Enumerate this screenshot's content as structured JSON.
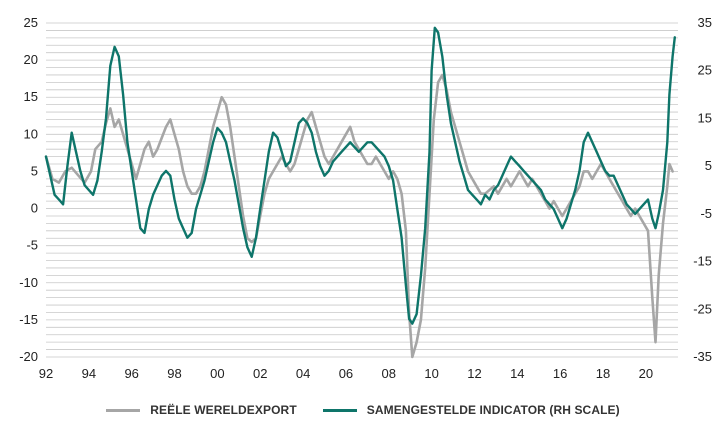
{
  "chart_data": {
    "type": "line",
    "title": "",
    "xlabel": "",
    "ylabel_left": "",
    "ylabel_right": "",
    "x_ticks": [
      "92",
      "94",
      "96",
      "98",
      "00",
      "02",
      "04",
      "06",
      "08",
      "10",
      "12",
      "14",
      "16",
      "18",
      "20"
    ],
    "x_range": [
      1992,
      2021.5
    ],
    "y_left_range": [
      -20,
      25
    ],
    "y_left_ticks": [
      "25",
      "20",
      "15",
      "10",
      "5",
      "0",
      "-5",
      "-10",
      "-15",
      "-20"
    ],
    "y_right_range": [
      -35,
      35
    ],
    "y_right_ticks": [
      "35",
      "25",
      "15",
      "5",
      "-5",
      "-15",
      "-25",
      "-35"
    ],
    "grid": true,
    "legend_position": "bottom",
    "series": [
      {
        "name": "REËLE WERELDEXPORT",
        "axis": "left",
        "color": "#a6a6a6",
        "points": [
          [
            1992.0,
            7
          ],
          [
            1992.3,
            4
          ],
          [
            1992.6,
            3.5
          ],
          [
            1992.9,
            5
          ],
          [
            1993.2,
            5.5
          ],
          [
            1993.5,
            4.5
          ],
          [
            1993.8,
            3.5
          ],
          [
            1994.1,
            5
          ],
          [
            1994.3,
            8
          ],
          [
            1994.6,
            9
          ],
          [
            1994.8,
            11.5
          ],
          [
            1995.0,
            13.5
          ],
          [
            1995.2,
            11
          ],
          [
            1995.4,
            12
          ],
          [
            1995.6,
            10
          ],
          [
            1995.8,
            8
          ],
          [
            1996.0,
            6
          ],
          [
            1996.2,
            4
          ],
          [
            1996.4,
            6
          ],
          [
            1996.6,
            8
          ],
          [
            1996.8,
            9
          ],
          [
            1997.0,
            7
          ],
          [
            1997.2,
            8
          ],
          [
            1997.4,
            9.5
          ],
          [
            1997.6,
            11
          ],
          [
            1997.8,
            12
          ],
          [
            1998.0,
            10
          ],
          [
            1998.2,
            8
          ],
          [
            1998.4,
            5
          ],
          [
            1998.6,
            3
          ],
          [
            1998.8,
            2
          ],
          [
            1999.0,
            2
          ],
          [
            1999.2,
            3
          ],
          [
            1999.4,
            5
          ],
          [
            1999.6,
            8
          ],
          [
            1999.8,
            11
          ],
          [
            2000.0,
            13
          ],
          [
            2000.2,
            15
          ],
          [
            2000.4,
            14
          ],
          [
            2000.6,
            11
          ],
          [
            2000.8,
            7
          ],
          [
            2001.0,
            3
          ],
          [
            2001.2,
            -1
          ],
          [
            2001.4,
            -4
          ],
          [
            2001.6,
            -4.5
          ],
          [
            2001.8,
            -4
          ],
          [
            2002.0,
            -1
          ],
          [
            2002.2,
            2
          ],
          [
            2002.4,
            4
          ],
          [
            2002.6,
            5
          ],
          [
            2002.8,
            6
          ],
          [
            2003.0,
            7
          ],
          [
            2003.2,
            6
          ],
          [
            2003.4,
            5
          ],
          [
            2003.6,
            6
          ],
          [
            2003.8,
            8
          ],
          [
            2004.0,
            10
          ],
          [
            2004.2,
            12
          ],
          [
            2004.4,
            13
          ],
          [
            2004.6,
            11
          ],
          [
            2004.8,
            9
          ],
          [
            2005.0,
            7
          ],
          [
            2005.2,
            6
          ],
          [
            2005.4,
            7
          ],
          [
            2005.6,
            8
          ],
          [
            2005.8,
            9
          ],
          [
            2006.0,
            10
          ],
          [
            2006.2,
            11
          ],
          [
            2006.4,
            9
          ],
          [
            2006.6,
            8
          ],
          [
            2006.8,
            7
          ],
          [
            2007.0,
            6
          ],
          [
            2007.2,
            6
          ],
          [
            2007.4,
            7
          ],
          [
            2007.6,
            6
          ],
          [
            2007.8,
            5
          ],
          [
            2008.0,
            4
          ],
          [
            2008.2,
            5
          ],
          [
            2008.4,
            4
          ],
          [
            2008.6,
            2
          ],
          [
            2008.8,
            -3
          ],
          [
            2008.95,
            -14
          ],
          [
            2009.1,
            -20
          ],
          [
            2009.3,
            -18
          ],
          [
            2009.5,
            -15
          ],
          [
            2009.7,
            -8
          ],
          [
            2009.9,
            2
          ],
          [
            2010.1,
            12
          ],
          [
            2010.3,
            17
          ],
          [
            2010.5,
            18
          ],
          [
            2010.7,
            16
          ],
          [
            2010.9,
            13
          ],
          [
            2011.1,
            11
          ],
          [
            2011.3,
            9
          ],
          [
            2011.5,
            7
          ],
          [
            2011.7,
            5
          ],
          [
            2011.9,
            4
          ],
          [
            2012.1,
            3
          ],
          [
            2012.3,
            2
          ],
          [
            2012.5,
            2
          ],
          [
            2012.7,
            2.5
          ],
          [
            2012.9,
            3
          ],
          [
            2013.1,
            2
          ],
          [
            2013.3,
            3
          ],
          [
            2013.5,
            4
          ],
          [
            2013.7,
            3
          ],
          [
            2013.9,
            4
          ],
          [
            2014.1,
            5
          ],
          [
            2014.3,
            4
          ],
          [
            2014.5,
            3
          ],
          [
            2014.7,
            4
          ],
          [
            2014.9,
            3
          ],
          [
            2015.1,
            2
          ],
          [
            2015.3,
            1
          ],
          [
            2015.5,
            0
          ],
          [
            2015.7,
            1
          ],
          [
            2015.9,
            0
          ],
          [
            2016.1,
            -1
          ],
          [
            2016.3,
            0
          ],
          [
            2016.5,
            1
          ],
          [
            2016.7,
            2
          ],
          [
            2016.9,
            3
          ],
          [
            2017.1,
            5
          ],
          [
            2017.3,
            5
          ],
          [
            2017.5,
            4
          ],
          [
            2017.7,
            5
          ],
          [
            2017.9,
            6
          ],
          [
            2018.1,
            5
          ],
          [
            2018.3,
            4
          ],
          [
            2018.5,
            3
          ],
          [
            2018.7,
            2
          ],
          [
            2018.9,
            1
          ],
          [
            2019.1,
            0
          ],
          [
            2019.3,
            -1
          ],
          [
            2019.5,
            0
          ],
          [
            2019.7,
            -1
          ],
          [
            2019.9,
            -2
          ],
          [
            2020.1,
            -3
          ],
          [
            2020.3,
            -12
          ],
          [
            2020.45,
            -18
          ],
          [
            2020.6,
            -9
          ],
          [
            2020.8,
            -2
          ],
          [
            2021.0,
            3
          ],
          [
            2021.1,
            6
          ],
          [
            2021.25,
            5
          ]
        ]
      },
      {
        "name": "SAMENGESTELDE INDICATOR (RH SCALE)",
        "axis": "right",
        "color": "#0e756a",
        "points": [
          [
            1992.0,
            7
          ],
          [
            1992.2,
            3
          ],
          [
            1992.4,
            -1
          ],
          [
            1992.6,
            -2
          ],
          [
            1992.8,
            -3
          ],
          [
            1993.0,
            5
          ],
          [
            1993.2,
            12
          ],
          [
            1993.4,
            8
          ],
          [
            1993.6,
            4
          ],
          [
            1993.8,
            1
          ],
          [
            1994.0,
            0
          ],
          [
            1994.2,
            -1
          ],
          [
            1994.4,
            2
          ],
          [
            1994.6,
            8
          ],
          [
            1994.8,
            15
          ],
          [
            1995.0,
            26
          ],
          [
            1995.2,
            30
          ],
          [
            1995.4,
            28
          ],
          [
            1995.6,
            20
          ],
          [
            1995.8,
            10
          ],
          [
            1996.0,
            4
          ],
          [
            1996.2,
            -2
          ],
          [
            1996.4,
            -8
          ],
          [
            1996.6,
            -9
          ],
          [
            1996.8,
            -4
          ],
          [
            1997.0,
            -1
          ],
          [
            1997.2,
            1
          ],
          [
            1997.4,
            3
          ],
          [
            1997.6,
            4
          ],
          [
            1997.8,
            3
          ],
          [
            1998.0,
            -2
          ],
          [
            1998.2,
            -6
          ],
          [
            1998.4,
            -8
          ],
          [
            1998.6,
            -10
          ],
          [
            1998.8,
            -9
          ],
          [
            1999.0,
            -4
          ],
          [
            1999.2,
            -1
          ],
          [
            1999.4,
            2
          ],
          [
            1999.6,
            6
          ],
          [
            1999.8,
            10
          ],
          [
            2000.0,
            13
          ],
          [
            2000.2,
            12
          ],
          [
            2000.4,
            10
          ],
          [
            2000.6,
            6
          ],
          [
            2000.8,
            2
          ],
          [
            2001.0,
            -3
          ],
          [
            2001.2,
            -8
          ],
          [
            2001.4,
            -12
          ],
          [
            2001.6,
            -14
          ],
          [
            2001.8,
            -10
          ],
          [
            2002.0,
            -4
          ],
          [
            2002.2,
            2
          ],
          [
            2002.4,
            8
          ],
          [
            2002.6,
            12
          ],
          [
            2002.8,
            11
          ],
          [
            2003.0,
            8
          ],
          [
            2003.2,
            5
          ],
          [
            2003.4,
            6
          ],
          [
            2003.6,
            10
          ],
          [
            2003.8,
            14
          ],
          [
            2004.0,
            15
          ],
          [
            2004.2,
            14
          ],
          [
            2004.4,
            12
          ],
          [
            2004.6,
            8
          ],
          [
            2004.8,
            5
          ],
          [
            2005.0,
            3
          ],
          [
            2005.2,
            4
          ],
          [
            2005.4,
            6
          ],
          [
            2005.6,
            7
          ],
          [
            2005.8,
            8
          ],
          [
            2006.0,
            9
          ],
          [
            2006.2,
            10
          ],
          [
            2006.4,
            9
          ],
          [
            2006.6,
            8
          ],
          [
            2006.8,
            9
          ],
          [
            2007.0,
            10
          ],
          [
            2007.2,
            10
          ],
          [
            2007.4,
            9
          ],
          [
            2007.6,
            8
          ],
          [
            2007.8,
            7
          ],
          [
            2008.0,
            5
          ],
          [
            2008.2,
            2
          ],
          [
            2008.4,
            -4
          ],
          [
            2008.6,
            -10
          ],
          [
            2008.8,
            -20
          ],
          [
            2008.95,
            -27
          ],
          [
            2009.1,
            -28
          ],
          [
            2009.3,
            -26
          ],
          [
            2009.5,
            -18
          ],
          [
            2009.7,
            -8
          ],
          [
            2009.9,
            8
          ],
          [
            2010.0,
            25
          ],
          [
            2010.15,
            34
          ],
          [
            2010.3,
            33
          ],
          [
            2010.5,
            28
          ],
          [
            2010.7,
            20
          ],
          [
            2010.9,
            14
          ],
          [
            2011.1,
            10
          ],
          [
            2011.3,
            6
          ],
          [
            2011.5,
            3
          ],
          [
            2011.7,
            0
          ],
          [
            2011.9,
            -1
          ],
          [
            2012.1,
            -2
          ],
          [
            2012.3,
            -3
          ],
          [
            2012.5,
            -1
          ],
          [
            2012.7,
            -2
          ],
          [
            2012.9,
            0
          ],
          [
            2013.1,
            1
          ],
          [
            2013.3,
            3
          ],
          [
            2013.5,
            5
          ],
          [
            2013.7,
            7
          ],
          [
            2013.9,
            6
          ],
          [
            2014.1,
            5
          ],
          [
            2014.3,
            4
          ],
          [
            2014.5,
            3
          ],
          [
            2014.7,
            2
          ],
          [
            2014.9,
            1
          ],
          [
            2015.1,
            0
          ],
          [
            2015.3,
            -2
          ],
          [
            2015.5,
            -3
          ],
          [
            2015.7,
            -4
          ],
          [
            2015.9,
            -6
          ],
          [
            2016.1,
            -8
          ],
          [
            2016.3,
            -6
          ],
          [
            2016.5,
            -3
          ],
          [
            2016.7,
            0
          ],
          [
            2016.9,
            4
          ],
          [
            2017.1,
            10
          ],
          [
            2017.3,
            12
          ],
          [
            2017.5,
            10
          ],
          [
            2017.7,
            8
          ],
          [
            2017.9,
            6
          ],
          [
            2018.1,
            4
          ],
          [
            2018.3,
            3
          ],
          [
            2018.5,
            3
          ],
          [
            2018.7,
            1
          ],
          [
            2018.9,
            -1
          ],
          [
            2019.1,
            -3
          ],
          [
            2019.3,
            -4
          ],
          [
            2019.5,
            -5
          ],
          [
            2019.7,
            -4
          ],
          [
            2019.9,
            -3
          ],
          [
            2020.1,
            -2
          ],
          [
            2020.3,
            -6
          ],
          [
            2020.45,
            -8
          ],
          [
            2020.6,
            -5
          ],
          [
            2020.8,
            0
          ],
          [
            2021.0,
            10
          ],
          [
            2021.1,
            20
          ],
          [
            2021.25,
            28
          ],
          [
            2021.35,
            32
          ]
        ]
      }
    ]
  }
}
